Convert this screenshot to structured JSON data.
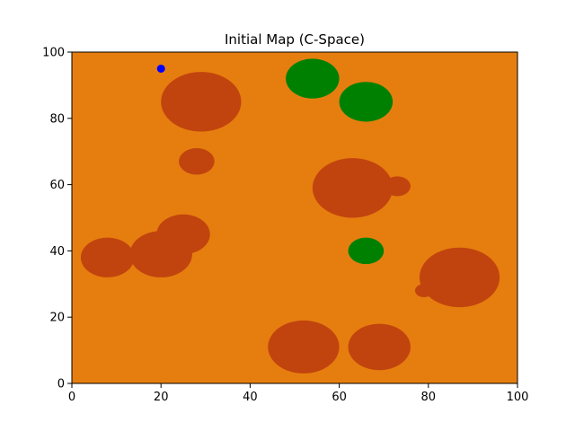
{
  "chart_data": {
    "type": "scatter",
    "title": "Initial Map (C-Space)",
    "xlabel": "",
    "ylabel": "",
    "xlim": [
      0,
      100
    ],
    "ylim": [
      0,
      100
    ],
    "x_ticks": [
      0,
      20,
      40,
      60,
      80,
      100
    ],
    "y_ticks": [
      0,
      20,
      40,
      60,
      80,
      100
    ],
    "grid": false,
    "background_color": "#e67e0f",
    "regions": [
      {
        "kind": "obstacle",
        "color": "#c1440e",
        "cx": 29,
        "cy": 85,
        "rx": 9,
        "ry": 9
      },
      {
        "kind": "obstacle",
        "color": "#c1440e",
        "cx": 28,
        "cy": 67,
        "rx": 4,
        "ry": 4
      },
      {
        "kind": "obstacle",
        "color": "#c1440e",
        "cx": 63,
        "cy": 59,
        "rx": 9,
        "ry": 9
      },
      {
        "kind": "obstacle",
        "color": "#c1440e",
        "cx": 73,
        "cy": 59.5,
        "rx": 3,
        "ry": 3
      },
      {
        "kind": "obstacle",
        "color": "#c1440e",
        "cx": 25,
        "cy": 45,
        "rx": 6,
        "ry": 6
      },
      {
        "kind": "obstacle",
        "color": "#c1440e",
        "cx": 20,
        "cy": 39,
        "rx": 7,
        "ry": 7
      },
      {
        "kind": "obstacle",
        "color": "#c1440e",
        "cx": 8,
        "cy": 38,
        "rx": 6,
        "ry": 6
      },
      {
        "kind": "obstacle",
        "color": "#c1440e",
        "cx": 87,
        "cy": 32,
        "rx": 9,
        "ry": 9
      },
      {
        "kind": "obstacle",
        "color": "#c1440e",
        "cx": 79,
        "cy": 28,
        "rx": 2,
        "ry": 2
      },
      {
        "kind": "obstacle",
        "color": "#c1440e",
        "cx": 52,
        "cy": 11,
        "rx": 8,
        "ry": 8
      },
      {
        "kind": "obstacle",
        "color": "#c1440e",
        "cx": 69,
        "cy": 11,
        "rx": 7,
        "ry": 7
      },
      {
        "kind": "goal",
        "color": "#008000",
        "cx": 54,
        "cy": 92,
        "rx": 6,
        "ry": 6
      },
      {
        "kind": "goal",
        "color": "#008000",
        "cx": 66,
        "cy": 85,
        "rx": 6,
        "ry": 6
      },
      {
        "kind": "goal",
        "color": "#008000",
        "cx": 66,
        "cy": 40,
        "rx": 4,
        "ry": 4
      }
    ],
    "points": [
      {
        "x": 20,
        "y": 95,
        "color": "#0000ff"
      }
    ]
  }
}
